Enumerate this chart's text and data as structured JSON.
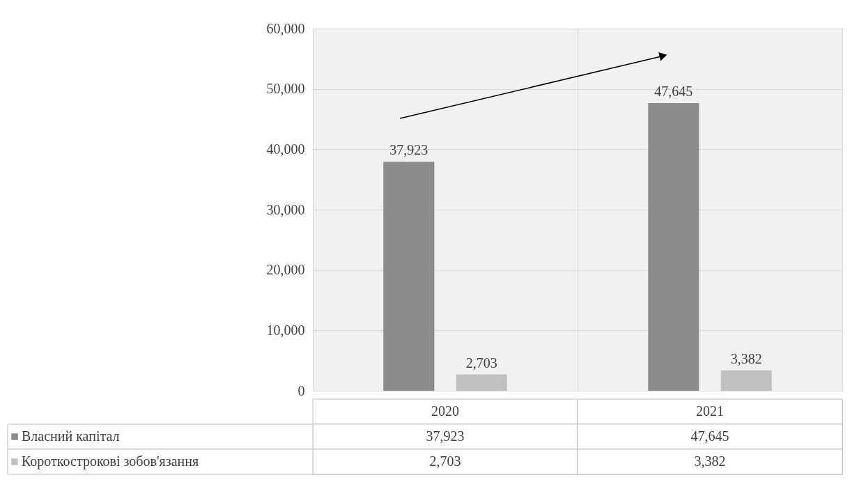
{
  "chart_data": {
    "type": "bar",
    "categories": [
      "2020",
      "2021"
    ],
    "series": [
      {
        "name": "Власний капітал",
        "color": "#8c8c8c",
        "values": [
          37923,
          47645
        ],
        "value_labels": [
          "37,923",
          "47,645"
        ]
      },
      {
        "name": "Короткострокові зобов'язання",
        "color": "#c0c0c0",
        "values": [
          2703,
          3382
        ],
        "value_labels": [
          "2,703",
          "3,382"
        ]
      }
    ],
    "ylim": [
      0,
      60000
    ],
    "yticks": [
      {
        "value": 0,
        "label": "0"
      },
      {
        "value": 10000,
        "label": "10,000"
      },
      {
        "value": 20000,
        "label": "20,000"
      },
      {
        "value": 30000,
        "label": "30,000"
      },
      {
        "value": 40000,
        "label": "40,000"
      },
      {
        "value": 50000,
        "label": "50,000"
      },
      {
        "value": 60000,
        "label": "60,000"
      }
    ],
    "grid": true,
    "legend": "bottom"
  }
}
